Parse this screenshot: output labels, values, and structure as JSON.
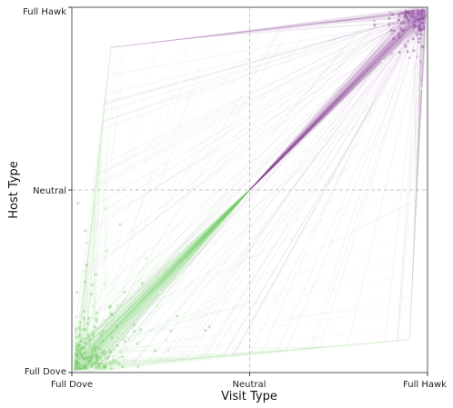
{
  "chart_data": {
    "type": "scatter",
    "title": "",
    "xlabel": "Visit Type",
    "ylabel": "Host Type",
    "xlim": [
      -1,
      1
    ],
    "ylim": [
      -1,
      1
    ],
    "x_ticks": [
      {
        "value": -1,
        "label": "Full Dove"
      },
      {
        "value": 0,
        "label": "Neutral"
      },
      {
        "value": 1,
        "label": "Full Hawk"
      }
    ],
    "y_ticks": [
      {
        "value": -1,
        "label": "Full Dove"
      },
      {
        "value": 0,
        "label": "Neutral"
      },
      {
        "value": 1,
        "label": "Full Hawk"
      }
    ],
    "grid": "dashed reference lines at Neutral",
    "legend": "none",
    "colors": {
      "hawk": "#8e4a9e",
      "hawk_light": "#c9a3d3",
      "dove": "#7ccf6e",
      "dove_light": "#c5e8bd",
      "reference": "#b5b5b5",
      "frame": "#555555"
    },
    "series": [
      {
        "color_group": "hawk",
        "description_visible": "purple trajectories converging near (Full Hawk, Full Hawk)",
        "cluster_center": [
          0.98,
          0.98
        ],
        "cluster_spread": 0.06
      },
      {
        "color_group": "dove",
        "description_visible": "green trajectories converging near (Full Dove, Full Dove)",
        "cluster_center": [
          -0.98,
          -0.98
        ],
        "cluster_spread": 0.12
      }
    ],
    "envelope": [
      [
        -0.78,
        0.78
      ],
      [
        0.98,
        0.98
      ],
      [
        0.9,
        -0.82
      ],
      [
        -0.98,
        -0.98
      ]
    ],
    "origin": [
      0,
      0
    ]
  }
}
